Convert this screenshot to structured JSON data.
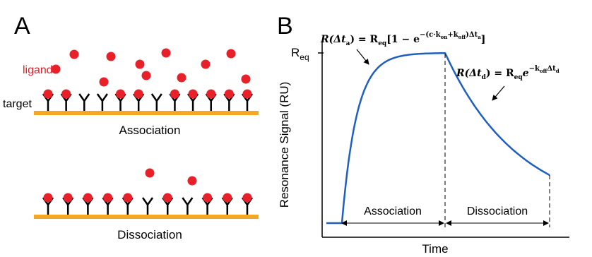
{
  "panel_a": {
    "letter": "A",
    "ligand_label": "ligand",
    "target_label": "target",
    "association_label": "Association",
    "dissociation_label": "Dissociation",
    "colors": {
      "ligand": "#e8202a",
      "surface": "#f5a623",
      "receptor": "#000000",
      "ligand_label": "#e8202a"
    },
    "association_occupancy": [
      1,
      1,
      0,
      0,
      1,
      1,
      0,
      1,
      1,
      1,
      1,
      1
    ],
    "dissociation_occupancy": [
      1,
      1,
      1,
      1,
      1,
      0,
      1,
      0,
      1,
      1,
      1
    ]
  },
  "panel_b": {
    "letter": "B",
    "y_axis_label": "Resonance Signal (RU)",
    "x_axis_label": "Time",
    "req_label_main": "R",
    "req_label_sub": "eq",
    "phase_association": "Association",
    "phase_dissociation": "Dissociation",
    "eq_association": "R(Δt",
    "eq_association_sub": "a",
    "eq_association_rhs": ") = R",
    "eq_association_rhs_sub": "eq",
    "eq_association_bracket": "[1 − e",
    "eq_association_exp": "−(c·k",
    "eq_association_exp_on": "on",
    "eq_association_exp_mid": "+k",
    "eq_association_exp_off": "off",
    "eq_association_exp_end": ")Δt",
    "eq_association_exp_a": "a",
    "eq_association_close": "]",
    "eq_dissociation": "R(Δt",
    "eq_dissociation_sub": "d",
    "eq_dissociation_rhs": ") = R",
    "eq_dissociation_rhs_sub": "eq",
    "eq_dissociation_e": "e",
    "eq_dissociation_exp": "−k",
    "eq_dissociation_exp_off": "off",
    "eq_dissociation_exp_end": "Δt",
    "eq_dissociation_exp_d": "d",
    "colors": {
      "curve": "#1f5fbf"
    }
  }
}
